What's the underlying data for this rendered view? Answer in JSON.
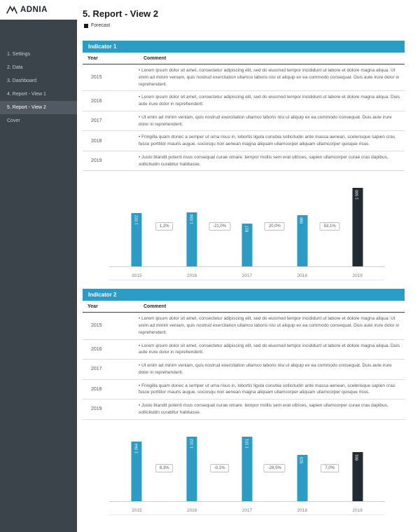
{
  "sidebar": {
    "logo_text": "ADNIA",
    "items": [
      {
        "label": "1. Settings",
        "active": false
      },
      {
        "label": "2. Data",
        "active": false
      },
      {
        "label": "3. Dashboard",
        "active": false
      },
      {
        "label": "4. Report - View 1",
        "active": false
      },
      {
        "label": "5. Report - View 2",
        "active": true
      },
      {
        "label": "Cover",
        "active": false
      }
    ]
  },
  "header": {
    "title": "5. Report - View 2",
    "legend_label": "Forecast"
  },
  "colors": {
    "accent": "#2d9cc5",
    "forecast_dark": "#232b32",
    "sidebar": "#3c444b"
  },
  "sections": [
    {
      "title": "Indicator 1",
      "table": {
        "columns": [
          "Year",
          "Comment"
        ],
        "rows": [
          {
            "year": "2015",
            "comment": "• Lorem ipsum dolor sit amet, consectetur adipiscing elit, sed do eiusmod tempor incididunt ut labore et dolore magna aliqua. Ut enim ad minim veniam, quis nostrud exercitation ullamco laboris nisi ut aliquip ex ea commodo consequat. Duis aute irure dolor in reprehenderit."
          },
          {
            "year": "2016",
            "comment": "• Lorem ipsum dolor sit amet, consectetur adipiscing elit, sed do eiusmod tempor incididunt ut labore et dolore magna aliqua. Duis aute irure dolor in reprehenderit."
          },
          {
            "year": "2017",
            "comment": "• Ut enim ad minim veniam, quis nostrud exercitation ullamco laboris nisi ut aliquip ex ea commodo consequat. Duis aute irure dolor in reprehenderit."
          },
          {
            "year": "2018",
            "comment": "• Fringilla quam donec a semper ut urna risus in, lobortis ligula conubia sollicitudin ante massa aenean, scelerisque sapien cras fusce porttitor mauris augue. sociosqu non aenean magna aliquam ullamcorper aliquam ullamcorper quisque risus."
          },
          {
            "year": "2019",
            "comment": "• Justo blandit potenti risus consequat curae ornare. tempor mollis sem erat ultrices, sapien ullamcorper curae cras dapibus, sollicitudin curabitur habitasse."
          }
        ]
      },
      "chart": {
        "type": "bar",
        "categories": [
          "2015",
          "2016",
          "2017",
          "2018",
          "2019"
        ],
        "values": [
          1022,
          1034,
          817,
          980,
          1500
        ],
        "labels": [
          "1 022",
          "1 034",
          "817",
          "980",
          "1 500"
        ],
        "deltas": [
          "1,2%",
          "-21,0%",
          "20,0%",
          "53,1%"
        ],
        "forecast_index": 4,
        "ylim": [
          0,
          1500
        ]
      }
    },
    {
      "title": "Indicator 2",
      "table": {
        "columns": [
          "Year",
          "Comment"
        ],
        "rows": [
          {
            "year": "2015",
            "comment": "• Lorem ipsum dolor sit amet, consectetur adipiscing elit, sed do eiusmod tempor incididunt ut labore et dolore magna aliqua. Ut enim ad minim veniam, quis nostrud exercitation ullamco laboris nisi ut aliquip ex ea commodo consequat. Duis aute irure dolor in reprehenderit."
          },
          {
            "year": "2016",
            "comment": "• Lorem ipsum dolor sit amet, consectetur adipiscing elit, sed do eiusmod tempor incididunt ut labore et dolore magna aliqua. Duis aute irure dolor in reprehenderit."
          },
          {
            "year": "2017",
            "comment": "• Ut enim ad minim veniam, quis nostrud exercitation ullamco laboris nisi ut aliquip ex ea commodo consequat. Duis aute irure dolor in reprehenderit."
          },
          {
            "year": "2018",
            "comment": "• Fringilla quam donec a semper ut urna risus in, lobortis ligula conubia sollicitudin ante massa aenean, scelerisque sapien cras fusce porttitor mauris augue. sociosqu non aenean magna aliquam ullamcorper aliquam ullamcorper quisque risus."
          },
          {
            "year": "2019",
            "comment": "• Justo blandit potenti risus consequat curae ornare. tempor mollis sem erat ultrices, sapien ullamcorper curae cras dapibus, sollicitudin curabitur habitasse."
          }
        ]
      },
      "chart": {
        "type": "bar",
        "categories": [
          "2015",
          "2016",
          "2017",
          "2018",
          "2019"
        ],
        "values": [
          1064,
          1152,
          1151,
          823,
          881
        ],
        "labels": [
          "1 064",
          "1 152",
          "1 151",
          "823",
          "881"
        ],
        "deltas": [
          "8,3%",
          "-0,1%",
          "-28,5%",
          "7,0%"
        ],
        "forecast_index": 4,
        "ylim": [
          0,
          1200
        ]
      }
    }
  ]
}
